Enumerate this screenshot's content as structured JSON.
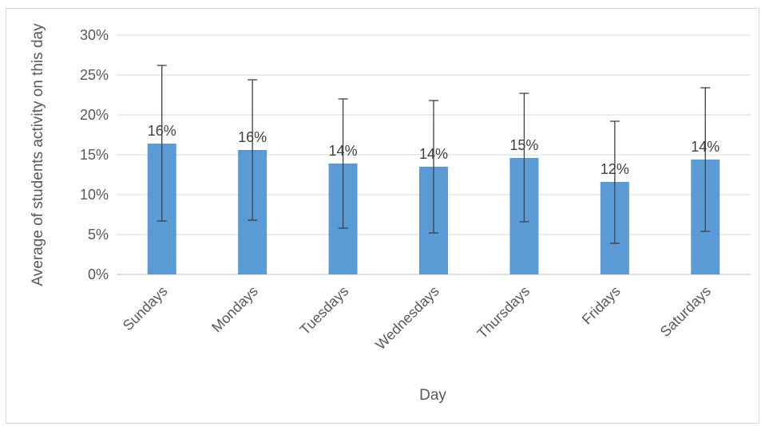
{
  "chart_data": {
    "type": "bar",
    "title": "",
    "xlabel": "Day",
    "ylabel": "Average of students activity on this day",
    "categories": [
      "Sundays",
      "Mondays",
      "Tuesdays",
      "Wednesdays",
      "Thursdays",
      "Fridays",
      "Saturdays"
    ],
    "values": [
      0.164,
      0.156,
      0.139,
      0.135,
      0.146,
      0.116,
      0.144
    ],
    "data_labels": [
      "16%",
      "16%",
      "14%",
      "14%",
      "15%",
      "12%",
      "14%"
    ],
    "error_bars": {
      "upper": [
        0.262,
        0.244,
        0.22,
        0.218,
        0.227,
        0.192,
        0.234
      ],
      "lower": [
        0.067,
        0.068,
        0.058,
        0.052,
        0.066,
        0.039,
        0.054
      ]
    },
    "ylim": [
      0,
      0.3
    ],
    "yticks": [
      0,
      0.05,
      0.1,
      0.15,
      0.2,
      0.25,
      0.3
    ],
    "ytick_labels": [
      "0%",
      "5%",
      "10%",
      "15%",
      "20%",
      "25%",
      "30%"
    ],
    "grid": true,
    "legend": "none",
    "colors": {
      "bar": "#5b9bd5",
      "error_bar": "#404040",
      "grid": "#d9d9d9",
      "axis": "#bfbfbf"
    }
  }
}
